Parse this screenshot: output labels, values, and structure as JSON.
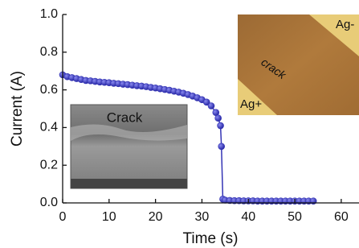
{
  "chart_data": {
    "type": "line",
    "xlabel": "Time (s)",
    "ylabel": "Current (A)",
    "x": [
      0,
      1,
      2,
      3,
      4,
      5,
      6,
      7,
      8,
      9,
      10,
      11,
      12,
      13,
      14,
      15,
      16,
      17,
      18,
      19,
      20,
      21,
      22,
      23,
      24,
      25,
      26,
      27,
      28,
      29,
      30,
      31,
      32,
      33,
      33.5,
      34,
      34.2,
      34.5,
      35,
      36,
      37,
      38,
      39,
      40,
      41,
      42,
      43,
      44,
      45,
      46,
      47,
      48,
      49,
      50,
      51,
      52,
      53,
      54
    ],
    "values": [
      0.68,
      0.67,
      0.665,
      0.66,
      0.655,
      0.65,
      0.648,
      0.645,
      0.642,
      0.64,
      0.638,
      0.635,
      0.633,
      0.63,
      0.628,
      0.625,
      0.622,
      0.62,
      0.617,
      0.613,
      0.61,
      0.606,
      0.602,
      0.598,
      0.593,
      0.588,
      0.582,
      0.575,
      0.567,
      0.558,
      0.548,
      0.535,
      0.515,
      0.48,
      0.45,
      0.41,
      0.3,
      0.02,
      0.015,
      0.013,
      0.012,
      0.012,
      0.011,
      0.011,
      0.011,
      0.01,
      0.01,
      0.01,
      0.01,
      0.01,
      0.01,
      0.01,
      0.01,
      0.01,
      0.01,
      0.01,
      0.01,
      0.01
    ],
    "color": "#3535b5",
    "xlim": [
      0,
      64
    ],
    "ylim": [
      0,
      1
    ],
    "xticks": [
      0,
      10,
      20,
      30,
      40,
      50,
      60
    ],
    "yticks": [
      {
        "value": 0,
        "label": "0.0"
      },
      0.2,
      0.4,
      0.6,
      0.8,
      {
        "value": 1,
        "label": "1.0"
      }
    ],
    "annotations": [
      "Crack",
      "crack",
      "Ag-",
      "Ag+"
    ]
  }
}
